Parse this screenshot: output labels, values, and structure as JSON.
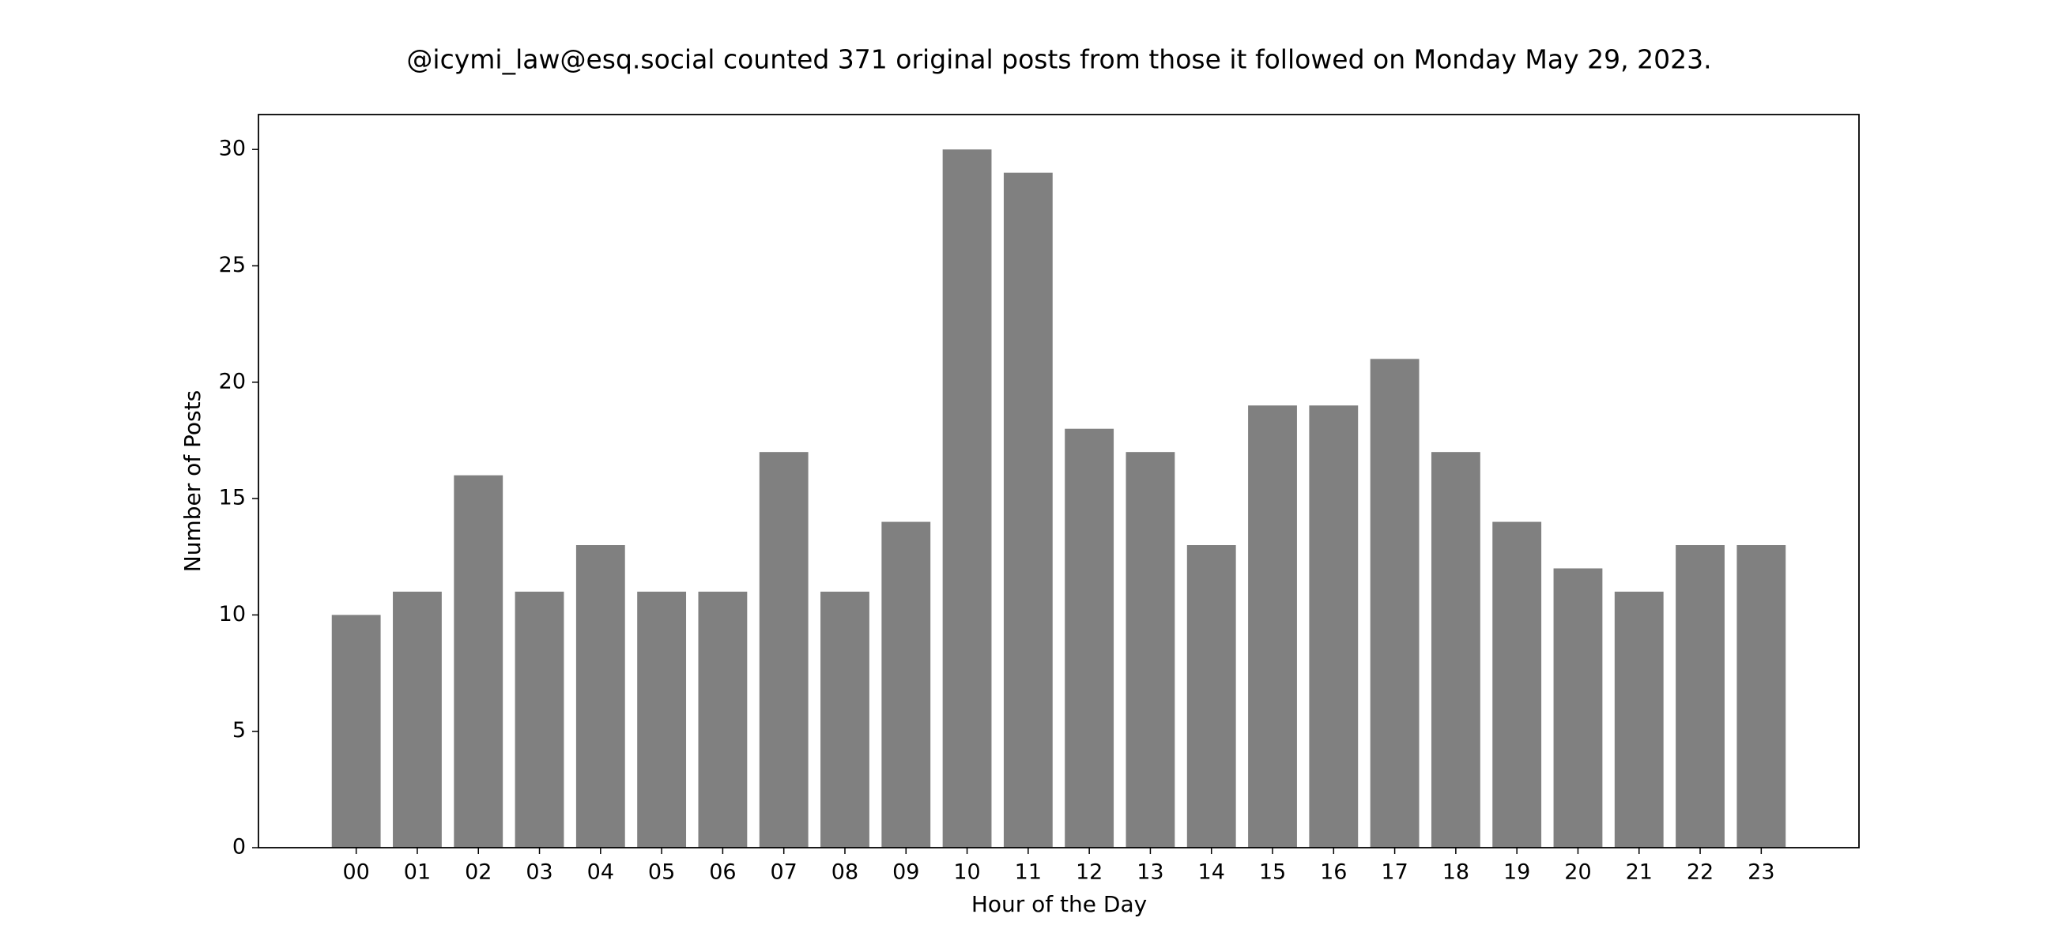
{
  "chart_data": {
    "type": "bar",
    "title": "@icymi_law@esq.social counted 371 original posts from those it followed on Monday May 29, 2023.",
    "x_label": "Hour of the Day",
    "y_label": "Number of Posts",
    "categories": [
      "00",
      "01",
      "02",
      "03",
      "04",
      "05",
      "06",
      "07",
      "08",
      "09",
      "10",
      "11",
      "12",
      "13",
      "14",
      "15",
      "16",
      "17",
      "18",
      "19",
      "20",
      "21",
      "22",
      "23"
    ],
    "values": [
      10,
      11,
      16,
      11,
      13,
      11,
      11,
      17,
      11,
      14,
      30,
      29,
      18,
      17,
      13,
      19,
      19,
      21,
      17,
      14,
      12,
      11,
      13,
      13
    ],
    "color": "#808080",
    "ylim": [
      0,
      31.5
    ],
    "yticks": [
      0,
      5,
      10,
      15,
      20,
      25,
      30
    ],
    "grid": false
  }
}
